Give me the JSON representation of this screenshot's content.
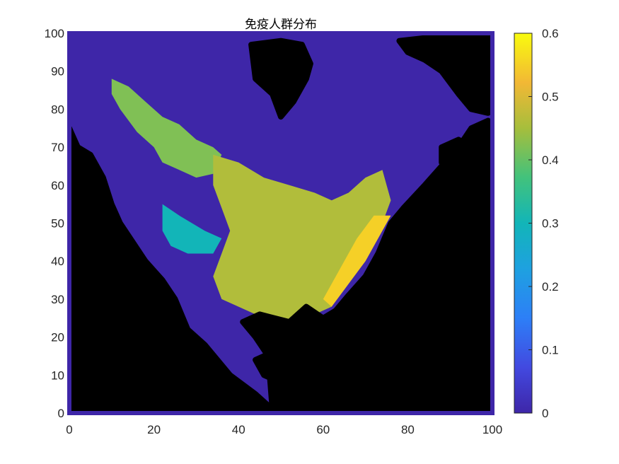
{
  "chart_data": {
    "type": "heatmap",
    "title": "免疫人群分布",
    "xlabel": "",
    "ylabel": "",
    "xlim": [
      0,
      100
    ],
    "ylim": [
      0,
      100
    ],
    "xticks": [
      "0",
      "20",
      "40",
      "60",
      "80",
      "100"
    ],
    "yticks": [
      "0",
      "10",
      "20",
      "30",
      "40",
      "50",
      "60",
      "70",
      "80",
      "90",
      "100"
    ],
    "colorbar": {
      "range": [
        0,
        0.6
      ],
      "ticks": [
        "0",
        "0.1",
        "0.2",
        "0.3",
        "0.4",
        "0.5",
        "0.6"
      ],
      "colormap": "parula"
    },
    "masked_color": "#000000",
    "background_color": "#3e26a8",
    "masked_land_outlines": [
      [
        [
          0,
          75
        ],
        [
          2,
          70
        ],
        [
          5,
          68
        ],
        [
          8,
          62
        ],
        [
          10,
          55
        ],
        [
          12,
          50
        ],
        [
          15,
          45
        ],
        [
          18,
          40
        ],
        [
          22,
          35
        ],
        [
          25,
          30
        ],
        [
          28,
          22
        ],
        [
          32,
          18
        ],
        [
          38,
          10
        ],
        [
          44,
          5
        ],
        [
          48,
          1
        ],
        [
          0,
          1
        ]
      ],
      [
        [
          48,
          1
        ],
        [
          47,
          15
        ],
        [
          44,
          20
        ],
        [
          41,
          24
        ],
        [
          45,
          26
        ],
        [
          52,
          24
        ],
        [
          56,
          28
        ],
        [
          60,
          25
        ],
        [
          63,
          27
        ],
        [
          66,
          31
        ],
        [
          70,
          36
        ],
        [
          73,
          42
        ],
        [
          76,
          50
        ],
        [
          79,
          54
        ],
        [
          84,
          60
        ],
        [
          88,
          65
        ],
        [
          92,
          70
        ],
        [
          95,
          75
        ],
        [
          99,
          77
        ],
        [
          99,
          1
        ]
      ],
      [
        [
          44,
          14
        ],
        [
          46,
          10
        ],
        [
          50,
          8
        ],
        [
          54,
          10
        ],
        [
          56,
          13
        ],
        [
          52,
          15
        ],
        [
          48,
          16
        ]
      ],
      [
        [
          43,
          97
        ],
        [
          50,
          98
        ],
        [
          55,
          97
        ],
        [
          57,
          92
        ],
        [
          56,
          88
        ],
        [
          53,
          82
        ],
        [
          50,
          78
        ],
        [
          48,
          84
        ],
        [
          44,
          88
        ]
      ],
      [
        [
          78,
          98
        ],
        [
          86,
          99
        ],
        [
          99,
          99
        ],
        [
          99,
          79
        ],
        [
          95,
          80
        ],
        [
          92,
          84
        ],
        [
          88,
          90
        ],
        [
          84,
          93
        ],
        [
          80,
          95
        ]
      ],
      [
        [
          88,
          70
        ],
        [
          92,
          72
        ],
        [
          95,
          70
        ],
        [
          98,
          67
        ],
        [
          96,
          64
        ],
        [
          92,
          64
        ],
        [
          88,
          66
        ]
      ]
    ],
    "immune_regions": [
      {
        "polygon": [
          [
            10,
            88
          ],
          [
            14,
            86
          ],
          [
            18,
            82
          ],
          [
            22,
            78
          ],
          [
            26,
            76
          ],
          [
            30,
            72
          ],
          [
            34,
            70
          ],
          [
            36,
            68
          ],
          [
            34,
            63
          ],
          [
            30,
            62
          ],
          [
            26,
            64
          ],
          [
            22,
            66
          ],
          [
            20,
            70
          ],
          [
            16,
            74
          ],
          [
            12,
            80
          ],
          [
            10,
            84
          ]
        ],
        "value": 0.42
      },
      {
        "polygon": [
          [
            34,
            68
          ],
          [
            40,
            66
          ],
          [
            46,
            62
          ],
          [
            52,
            60
          ],
          [
            58,
            58
          ],
          [
            62,
            56
          ],
          [
            66,
            58
          ],
          [
            70,
            62
          ],
          [
            74,
            64
          ],
          [
            76,
            56
          ],
          [
            74,
            50
          ],
          [
            70,
            45
          ],
          [
            66,
            40
          ],
          [
            64,
            34
          ],
          [
            62,
            28
          ],
          [
            58,
            26
          ],
          [
            54,
            24
          ],
          [
            48,
            24
          ],
          [
            44,
            26
          ],
          [
            40,
            28
          ],
          [
            36,
            30
          ],
          [
            34,
            36
          ],
          [
            36,
            42
          ],
          [
            38,
            48
          ],
          [
            36,
            54
          ],
          [
            34,
            60
          ]
        ],
        "value": 0.46
      },
      {
        "polygon": [
          [
            22,
            55
          ],
          [
            26,
            52
          ],
          [
            32,
            48
          ],
          [
            36,
            46
          ],
          [
            34,
            42
          ],
          [
            28,
            42
          ],
          [
            24,
            44
          ],
          [
            22,
            48
          ]
        ],
        "value": 0.3
      },
      {
        "polygon": [
          [
            62,
            28
          ],
          [
            66,
            34
          ],
          [
            70,
            40
          ],
          [
            74,
            48
          ],
          [
            76,
            52
          ],
          [
            72,
            52
          ],
          [
            68,
            46
          ],
          [
            64,
            38
          ],
          [
            60,
            30
          ]
        ],
        "value": 0.55
      }
    ]
  }
}
